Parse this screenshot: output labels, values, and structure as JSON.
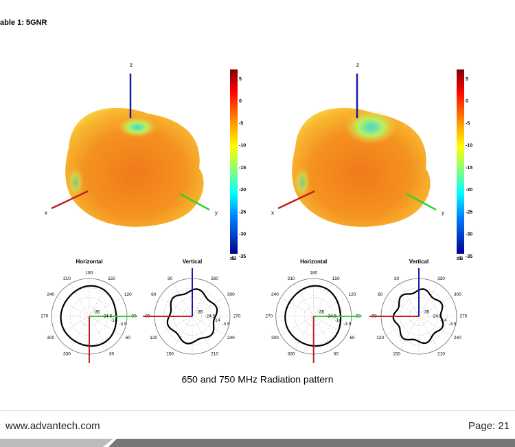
{
  "header": {
    "title": "able 1: 5GNR"
  },
  "figures": [
    {
      "axes": {
        "x": "x",
        "y": "y",
        "z": "z"
      },
      "colorbar": {
        "ticks": [
          "5",
          "0",
          "-5",
          "-10",
          "-15",
          "-20",
          "-25",
          "-30",
          "-35"
        ],
        "unit": "dB"
      },
      "horizontal": {
        "title": "Horizontal",
        "angles": [
          "180",
          "150",
          "120",
          "90",
          "60",
          "30",
          "330",
          "300",
          "270",
          "240",
          "210"
        ],
        "rings": [
          "-35",
          "-24.5",
          "-14",
          "-3.5"
        ]
      },
      "vertical": {
        "title": "Vertical",
        "angles": [
          "330",
          "300",
          "270",
          "240",
          "210",
          "150",
          "120",
          "90",
          "60",
          "30"
        ],
        "rings": [
          "-35",
          "-24.5",
          "-14",
          "-3.5"
        ]
      }
    },
    {
      "axes": {
        "x": "x",
        "y": "y",
        "z": "z"
      },
      "colorbar": {
        "ticks": [
          "5",
          "0",
          "-5",
          "-10",
          "-15",
          "-20",
          "-25",
          "-30",
          "-35"
        ],
        "unit": "dB"
      },
      "horizontal": {
        "title": "Horizontal",
        "angles": [
          "180",
          "150",
          "120",
          "90",
          "60",
          "30",
          "330",
          "300",
          "270",
          "240",
          "210"
        ],
        "rings": [
          "-35",
          "-24.5",
          "-14",
          "-3.5"
        ]
      },
      "vertical": {
        "title": "Vertical",
        "angles": [
          "330",
          "300",
          "270",
          "240",
          "210",
          "150",
          "120",
          "90",
          "60",
          "30"
        ],
        "rings": [
          "-35",
          "-24.5",
          "-14",
          "-3.5"
        ]
      }
    }
  ],
  "caption": "650 and 750 MHz Radiation pattern",
  "footer": {
    "website": "www.advantech.com",
    "page": "Page: 21"
  }
}
